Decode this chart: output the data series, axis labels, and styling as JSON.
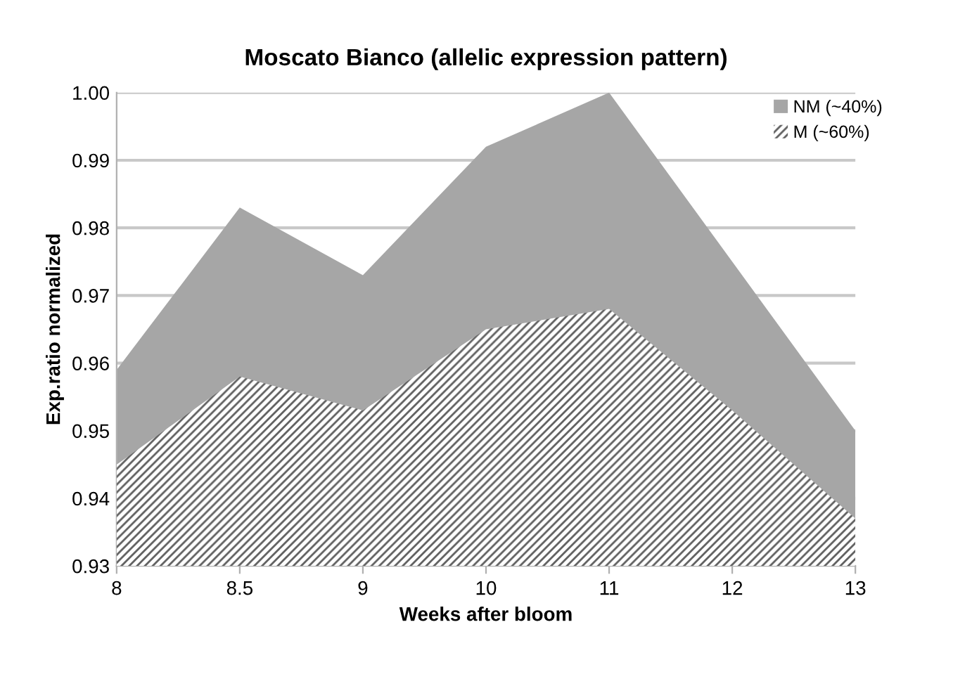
{
  "chart_data": {
    "type": "area",
    "title": "Moscato Bianco (allelic expression pattern)",
    "xlabel": "Weeks after bloom",
    "ylabel": "Exp.ratio normalized",
    "categories": [
      "8",
      "8.5",
      "9",
      "10",
      "11",
      "12",
      "13"
    ],
    "series": [
      {
        "name": "NM (~40%)",
        "color": "#a6a6a6",
        "values": [
          0.959,
          0.983,
          0.973,
          0.992,
          1.0,
          0.975,
          0.95
        ]
      },
      {
        "name": "M (~60%)",
        "color": "#ffffff",
        "values": [
          0.945,
          0.958,
          0.953,
          0.965,
          0.968,
          0.953,
          0.937
        ]
      }
    ],
    "ylim": [
      0.93,
      1.0
    ],
    "yticks": [
      {
        "value": 0.93,
        "label": "0.93"
      },
      {
        "value": 0.94,
        "label": "0.94"
      },
      {
        "value": 0.95,
        "label": "0.95"
      },
      {
        "value": 0.96,
        "label": "0.96"
      },
      {
        "value": 0.97,
        "label": "0.97"
      },
      {
        "value": 0.98,
        "label": "0.98"
      },
      {
        "value": 0.99,
        "label": "0.99"
      },
      {
        "value": 1.0,
        "label": "1.00"
      }
    ],
    "grid": "y",
    "legend": "top right"
  }
}
